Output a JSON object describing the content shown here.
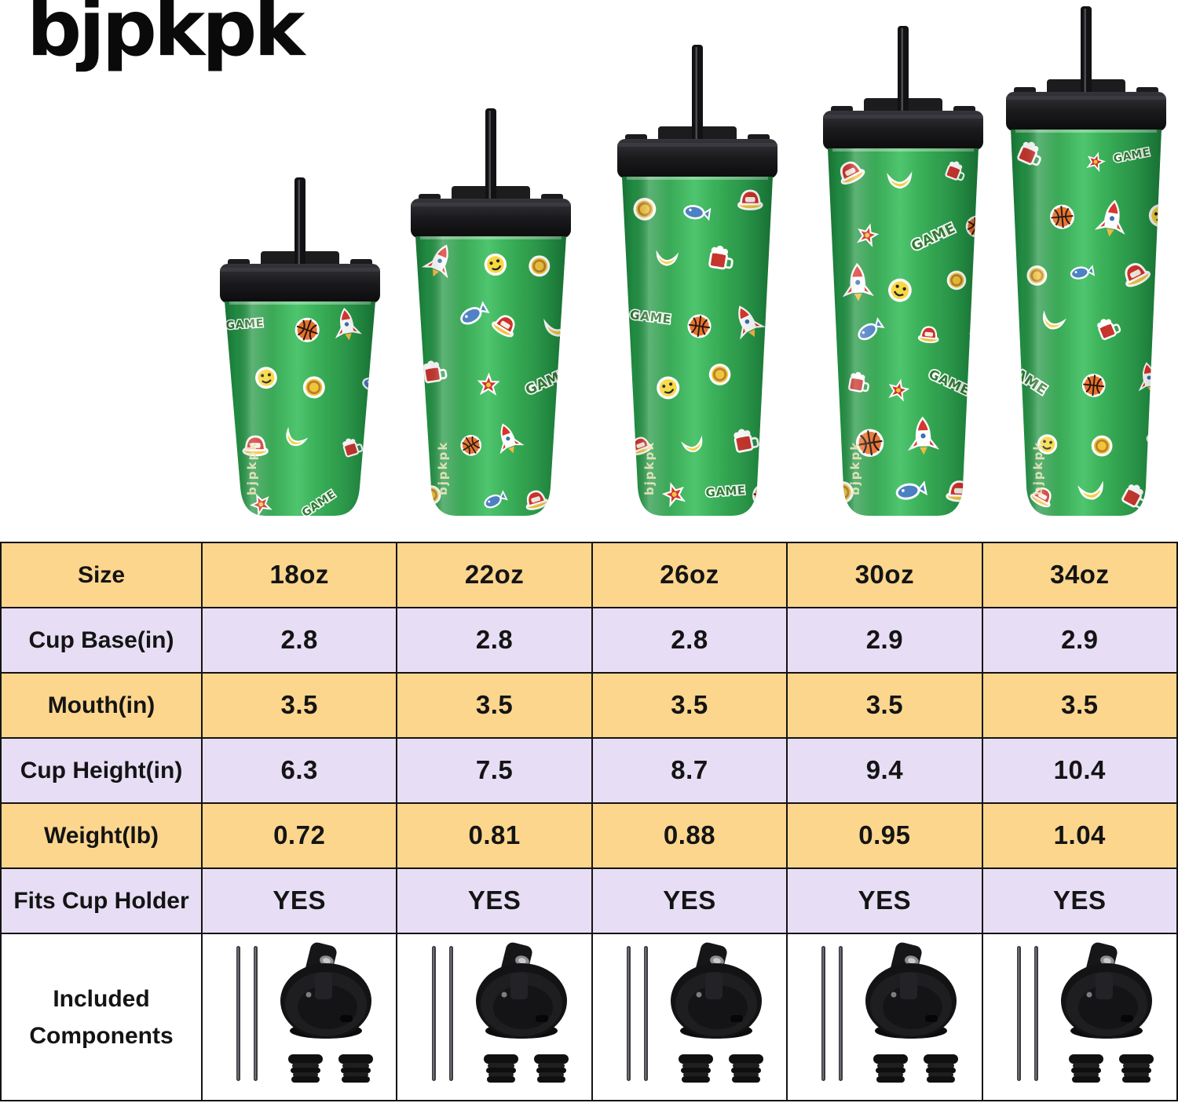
{
  "brand": {
    "logo_text": "bJPKPK",
    "cup_vertical_mark": "bJPKPK"
  },
  "products": [
    {
      "size_label": "18oz"
    },
    {
      "size_label": "22oz"
    },
    {
      "size_label": "26oz"
    },
    {
      "size_label": "30oz"
    },
    {
      "size_label": "34oz"
    }
  ],
  "sticker_pattern": {
    "theme": "retro game sticker print on green insulated tumbler with black flip lid and straw",
    "game_text": "GAME",
    "glyphs": [
      "game-text",
      "basketball",
      "rocket",
      "smiley-face",
      "gold-coin",
      "fish",
      "red-cap",
      "banana-crescent",
      "beer-mug",
      "star-flower"
    ]
  },
  "table": {
    "rows": [
      {
        "label": "Size",
        "values": [
          "18oz",
          "22oz",
          "26oz",
          "30oz",
          "34oz"
        ]
      },
      {
        "label": "Cup Base(in)",
        "values": [
          "2.8",
          "2.8",
          "2.8",
          "2.9",
          "2.9"
        ]
      },
      {
        "label": "Mouth(in)",
        "values": [
          "3.5",
          "3.5",
          "3.5",
          "3.5",
          "3.5"
        ]
      },
      {
        "label": "Cup Height(in)",
        "values": [
          "6.3",
          "7.5",
          "8.7",
          "9.4",
          "10.4"
        ]
      },
      {
        "label": "Weight(lb)",
        "values": [
          "0.72",
          "0.81",
          "0.88",
          "0.95",
          "1.04"
        ]
      },
      {
        "label": "Fits Cup Holder",
        "values": [
          "YES",
          "YES",
          "YES",
          "YES",
          "YES"
        ]
      }
    ],
    "included_components": {
      "label_line1": "Included",
      "label_line2": "Components",
      "items": [
        "two metal straws",
        "flip-top lid",
        "two straw stoppers"
      ]
    }
  },
  "colors": {
    "row_yellow": "#fcd68d",
    "row_purple": "#e7def5",
    "grid_line": "#141414",
    "text": "#141414",
    "cup_green": "#2fa34d",
    "cup_green_dark": "#1e8a41",
    "cup_green_light": "#4cc46c",
    "lid_black": "#17171a",
    "straw_black": "#121214",
    "brand_mark": "#ece5bd"
  }
}
